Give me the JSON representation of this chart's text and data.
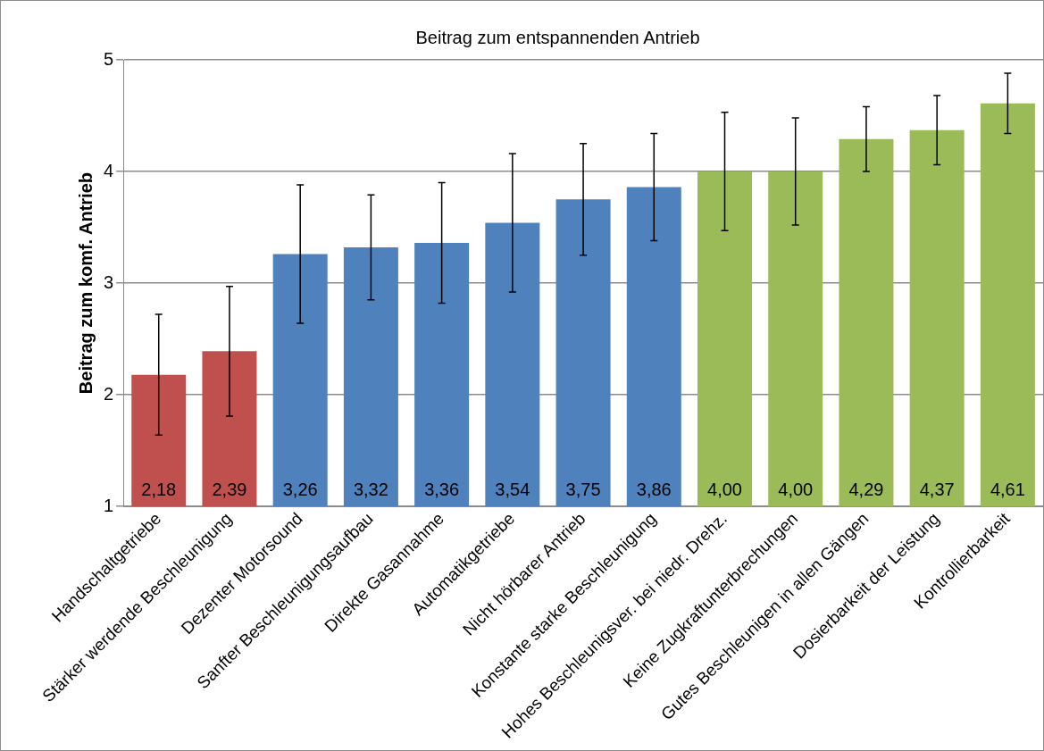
{
  "chart_data": {
    "type": "bar",
    "title": "Beitrag zum entspannenden Antrieb",
    "ylabel": "Beitrag zum komf. Antrieb",
    "categories": [
      "Handschaltgetriebe",
      "Stärker werdende Beschleunigung",
      "Dezenter Motorsound",
      "Sanfter Beschleunigungsaufbau",
      "Direkte Gasannahme",
      "Automatikgetriebe",
      "Nicht hörbarer Antrieb",
      "Konstante starke Beschleunigung",
      "Hohes Beschleunigsver. bei niedr. Drehz.",
      "Keine Zugkraftunterbrechungen",
      "Gutes Beschleunigen in allen Gängen",
      "Dosierbarkeit der Leistung",
      "Kontrollierbarkeit"
    ],
    "values": [
      2.18,
      2.39,
      3.26,
      3.32,
      3.36,
      3.54,
      3.75,
      3.86,
      4.0,
      4.0,
      4.29,
      4.37,
      4.61
    ],
    "errors": [
      0.54,
      0.58,
      0.62,
      0.47,
      0.54,
      0.62,
      0.5,
      0.48,
      0.53,
      0.48,
      0.29,
      0.31,
      0.27
    ],
    "value_labels": [
      "2,18",
      "2,39",
      "3,26",
      "3,32",
      "3,36",
      "3,54",
      "3,75",
      "3,86",
      "4,00",
      "4,00",
      "4,29",
      "4,37",
      "4,61"
    ],
    "colors": [
      "#c0504d",
      "#c0504d",
      "#4f81bd",
      "#4f81bd",
      "#4f81bd",
      "#4f81bd",
      "#4f81bd",
      "#4f81bd",
      "#9bbb59",
      "#9bbb59",
      "#9bbb59",
      "#9bbb59",
      "#9bbb59"
    ],
    "ylim": [
      1,
      5
    ],
    "yticks": [
      1,
      2,
      3,
      4,
      5
    ],
    "grid": "y",
    "legend": false
  }
}
